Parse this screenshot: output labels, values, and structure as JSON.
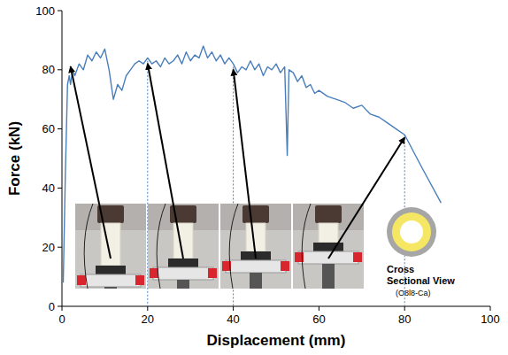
{
  "chart_data": {
    "type": "line",
    "x_label": "Displacement (mm)",
    "y_label": "Force (kN)",
    "xlim": [
      0,
      100
    ],
    "xticks": [
      0,
      20,
      40,
      60,
      80,
      100
    ],
    "ylim": [
      0,
      100
    ],
    "yticks": [
      0,
      20,
      40,
      60,
      80,
      100
    ],
    "grid": false,
    "x": [
      0.3,
      0.8,
      1.3,
      1.7,
      2,
      2.5,
      3,
      4,
      5,
      6,
      7,
      8,
      9,
      10,
      11,
      12,
      13,
      14,
      15,
      16,
      17,
      18,
      19,
      20,
      21,
      22,
      23,
      24,
      25,
      26,
      27,
      28,
      29,
      30,
      31,
      32,
      33,
      34,
      35,
      36,
      37,
      38,
      39,
      40,
      41,
      42,
      43,
      44,
      45,
      46,
      47,
      48,
      49,
      50,
      51,
      52,
      52.6,
      53,
      54,
      55,
      56,
      57,
      58,
      59,
      60,
      62,
      64,
      66,
      68,
      70,
      72,
      74,
      76,
      78,
      80,
      84,
      88.5
    ],
    "series": [
      {
        "color": "#4a7ebb",
        "values": [
          8,
          45,
          75,
          78,
          75,
          80,
          78,
          82,
          80,
          85,
          83,
          86,
          84,
          87,
          80,
          70,
          75,
          73,
          78,
          80,
          82,
          83,
          82,
          84,
          82,
          83,
          81,
          84,
          82,
          83,
          85,
          82,
          86,
          83,
          85,
          84,
          88,
          84,
          86,
          83,
          85,
          82,
          84,
          82,
          79,
          81,
          80,
          83,
          80,
          82,
          78,
          81,
          80,
          82,
          79,
          81,
          51,
          80,
          79,
          76,
          78,
          74,
          75,
          72,
          73,
          71,
          70,
          69,
          67,
          68,
          65,
          64,
          62,
          60,
          58,
          47,
          35
        ]
      }
    ],
    "photo_points": {
      "x": [
        2,
        20,
        40,
        80
      ],
      "y": [
        82,
        83,
        81,
        58
      ]
    },
    "annotations": [
      "Cross Sectional View",
      "(O8l8-Ca)"
    ]
  }
}
